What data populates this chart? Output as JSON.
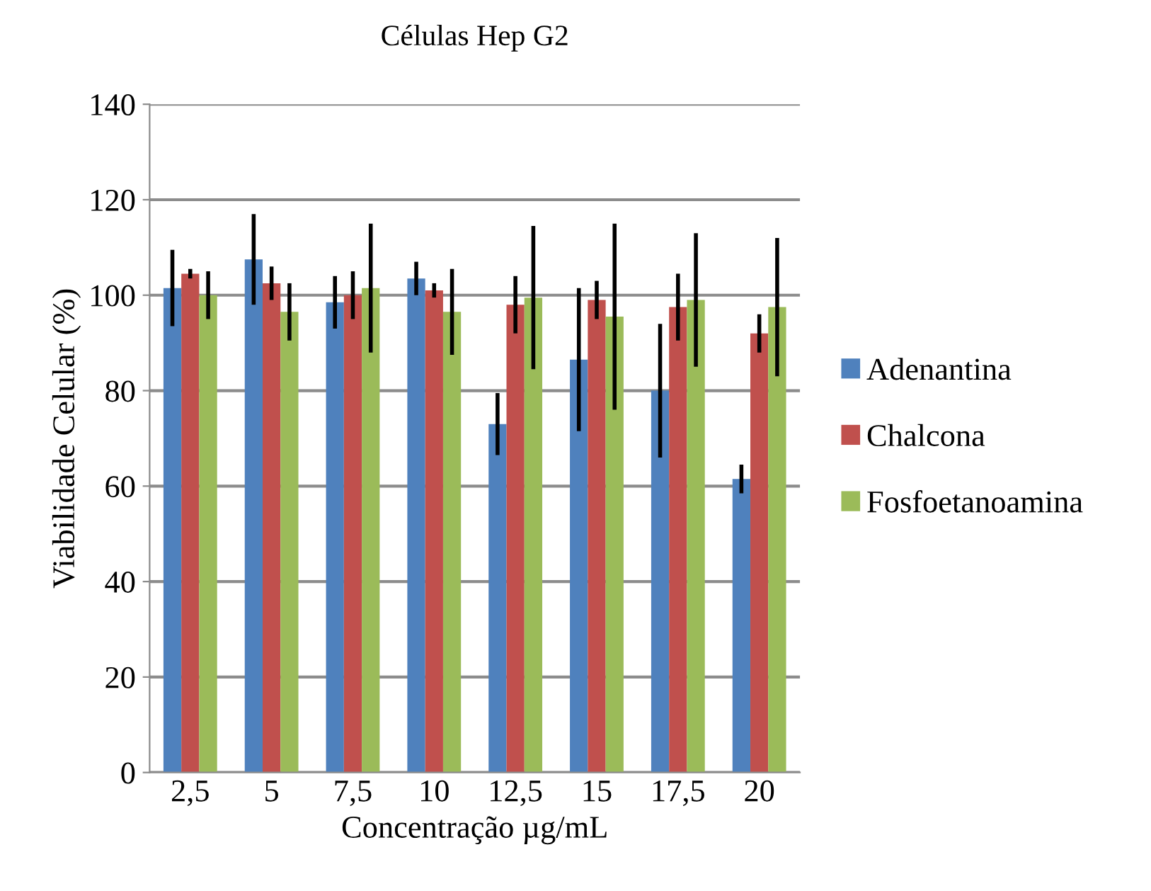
{
  "chart_data": {
    "type": "bar",
    "title": "Células Hep G2",
    "xlabel": "Concentração µg/mL",
    "ylabel": "Viabilidade Celular (%)",
    "categories": [
      "2,5",
      "5",
      "7,5",
      "10",
      "12,5",
      "15",
      "17,5",
      "20"
    ],
    "series": [
      {
        "name": "Adenantina",
        "color": "#4f81bd",
        "values": [
          101.5,
          107.5,
          98.5,
          103.5,
          73,
          86.5,
          80,
          61.5
        ],
        "errors": [
          8,
          9.5,
          5.5,
          3.5,
          6.5,
          15,
          14,
          3
        ]
      },
      {
        "name": "Chalcona",
        "color": "#c0504d",
        "values": [
          104.5,
          102.5,
          100,
          101,
          98,
          99,
          97.5,
          92
        ],
        "errors": [
          1,
          3.5,
          5,
          1.5,
          6,
          4,
          7,
          4
        ]
      },
      {
        "name": "Fosfoetanoamina",
        "color": "#9bbb59",
        "values": [
          100,
          96.5,
          101.5,
          96.5,
          99.5,
          95.5,
          99,
          97.5
        ],
        "errors": [
          5,
          6,
          13.5,
          9,
          15,
          19.5,
          14,
          14.5
        ]
      }
    ],
    "ylim": [
      0,
      140
    ],
    "yticks": [
      0,
      20,
      40,
      60,
      80,
      100,
      120,
      140
    ],
    "grid": "y",
    "legend": "right"
  }
}
